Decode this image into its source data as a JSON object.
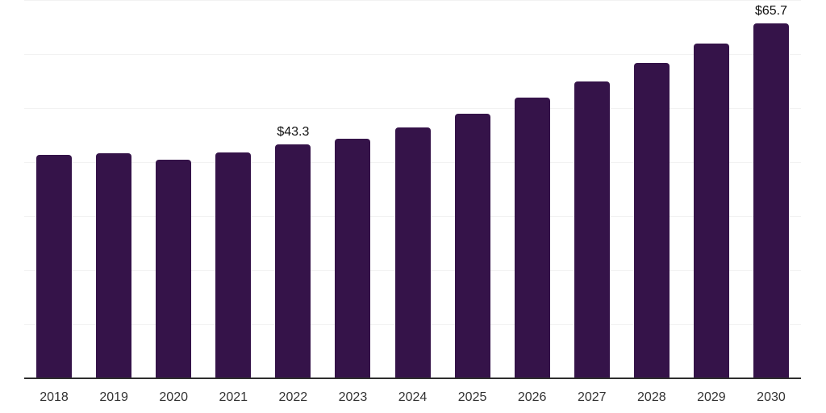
{
  "chart_style": {
    "background": "#ffffff",
    "bar_color": "#351349",
    "grid_color": "#f2f2f2",
    "axis_line_color": "#2e2e2e",
    "tick_label_color": "#333333",
    "data_label_color": "#111111"
  },
  "chart_data": {
    "type": "bar",
    "title": "",
    "xlabel": "",
    "ylabel": "",
    "categories": [
      "2018",
      "2019",
      "2020",
      "2021",
      "2022",
      "2023",
      "2024",
      "2025",
      "2026",
      "2027",
      "2028",
      "2029",
      "2030"
    ],
    "values": [
      41.4,
      41.7,
      40.5,
      41.8,
      43.3,
      44.3,
      46.4,
      49.0,
      51.9,
      54.9,
      58.3,
      61.9,
      65.7
    ],
    "data_labels": [
      "",
      "",
      "",
      "",
      "$43.3",
      "",
      "",
      "",
      "",
      "",
      "",
      "",
      "$65.7"
    ],
    "ylim": [
      0,
      70
    ],
    "grid_step": 10,
    "grid": true,
    "legend": false,
    "y_axis_labels_visible": false
  }
}
